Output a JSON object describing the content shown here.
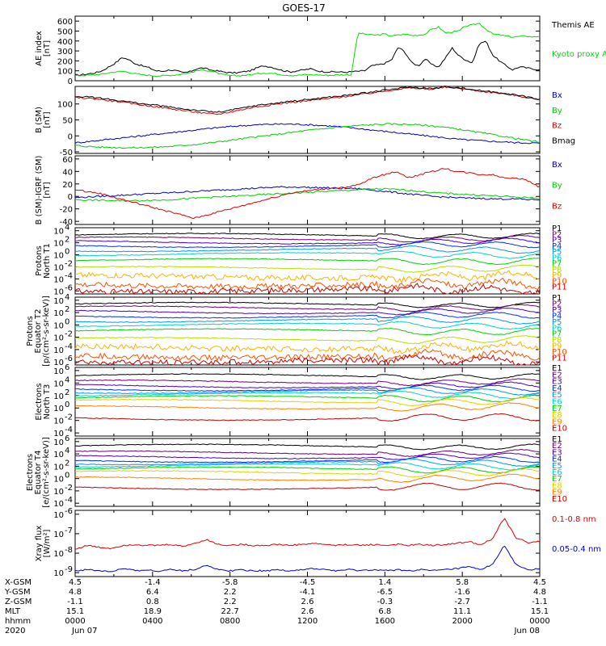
{
  "title": "GOES-17",
  "chart_data": [
    {
      "type": "line",
      "ylabel": [
        "AE index",
        "[nT]"
      ],
      "yticks": [
        "600",
        "500",
        "400",
        "300",
        "200",
        "100",
        "0"
      ],
      "ylim": [
        0,
        650
      ],
      "series": [
        {
          "name": "Themis AE",
          "color": "#000000",
          "values": [
            55,
            60,
            70,
            80,
            100,
            140,
            180,
            235,
            210,
            170,
            150,
            130,
            100,
            95,
            110,
            100,
            80,
            90,
            120,
            130,
            110,
            100,
            90,
            80,
            80,
            90,
            100,
            130,
            150,
            140,
            120,
            100,
            90,
            100,
            110,
            120,
            100,
            90,
            90,
            90,
            85,
            90,
            95,
            100,
            150,
            160,
            175,
            210,
            340,
            285,
            180,
            150,
            220,
            160,
            140,
            230,
            330,
            250,
            210,
            180,
            370,
            400,
            260,
            200,
            150,
            110,
            140,
            130,
            120,
            110
          ]
        },
        {
          "name": "Kyoto proxy AE",
          "color": "#00dd00",
          "values": [
            50,
            55,
            55,
            60,
            65,
            80,
            90,
            95,
            85,
            70,
            60,
            55,
            50,
            50,
            55,
            60,
            70,
            80,
            100,
            110,
            100,
            80,
            60,
            50,
            50,
            55,
            60,
            70,
            80,
            75,
            70,
            60,
            55,
            55,
            60,
            60,
            60,
            55,
            55,
            60,
            60,
            60,
            480,
            470,
            460,
            460,
            470,
            450,
            460,
            470,
            455,
            460,
            470,
            520,
            540,
            480,
            490,
            500,
            550,
            560,
            580,
            520,
            470,
            460,
            450,
            440,
            445,
            450,
            440,
            450
          ]
        }
      ]
    },
    {
      "type": "line",
      "ylabel": [
        "B (SM)",
        "[nT]"
      ],
      "yticks": [
        "100",
        "50",
        "0",
        "-50"
      ],
      "ylim": [
        -55,
        155
      ],
      "series": [
        {
          "name": "Bx",
          "color": "#0000cc",
          "values": [
            -22,
            -18,
            -14,
            -10,
            -6,
            -2,
            2,
            6,
            10,
            14,
            18,
            22,
            26,
            29,
            32,
            34,
            36,
            37,
            37,
            36,
            34,
            32,
            29,
            26,
            22,
            18,
            14,
            10,
            6,
            2,
            -2,
            -6,
            -10,
            -13,
            -15,
            -17,
            -19,
            -21,
            -22,
            -23
          ]
        },
        {
          "name": "By",
          "color": "#00cc00",
          "values": [
            -30,
            -33,
            -35,
            -36,
            -37,
            -37,
            -36,
            -35,
            -33,
            -30,
            -27,
            -23,
            -19,
            -14,
            -9,
            -4,
            0,
            5,
            10,
            15,
            19,
            23,
            27,
            30,
            33,
            35,
            37,
            37,
            36,
            34,
            31,
            27,
            22,
            16,
            10,
            4,
            -2,
            -8,
            -14,
            -20
          ]
        },
        {
          "name": "Bz",
          "color": "#dd0000",
          "values": [
            120,
            118,
            115,
            110,
            105,
            100,
            95,
            90,
            85,
            80,
            75,
            70,
            68,
            75,
            82,
            90,
            95,
            100,
            105,
            108,
            112,
            116,
            120,
            125,
            130,
            135,
            140,
            146,
            150,
            148,
            146,
            152,
            150,
            145,
            140,
            136,
            132,
            126,
            120,
            112
          ]
        },
        {
          "name": "Bmag",
          "color": "#000000",
          "values": [
            124,
            122,
            119,
            114,
            109,
            104,
            99,
            95,
            90,
            85,
            81,
            77,
            74,
            80,
            87,
            94,
            99,
            103,
            108,
            112,
            116,
            120,
            124,
            128,
            133,
            138,
            143,
            148,
            153,
            150,
            148,
            154,
            152,
            147,
            142,
            138,
            134,
            128,
            122,
            114
          ]
        }
      ]
    },
    {
      "type": "line",
      "ylabel": [
        "B (SM)-IGRF (SM)",
        "[nT]"
      ],
      "yticks": [
        "60",
        "40",
        "20",
        "0",
        "-20",
        "-40"
      ],
      "ylim": [
        -45,
        65
      ],
      "series": [
        {
          "name": "Bx",
          "color": "#0000cc",
          "values": [
            -2,
            -1,
            0,
            1,
            2,
            3,
            4,
            5,
            6,
            7,
            8,
            9,
            10,
            11,
            12,
            13,
            14,
            15,
            15,
            15,
            14,
            14,
            13,
            13,
            12,
            10,
            8,
            6,
            4,
            2,
            0,
            -1,
            -2,
            -3,
            -3,
            -4,
            -4,
            -4,
            -5,
            -5
          ]
        },
        {
          "name": "By",
          "color": "#00cc00",
          "values": [
            -5,
            -6,
            -6,
            -7,
            -7,
            -7,
            -6,
            -6,
            -5,
            -4,
            -3,
            -2,
            -1,
            0,
            1,
            2,
            3,
            4,
            5,
            6,
            7,
            8,
            9,
            10,
            11,
            12,
            12,
            11,
            10,
            8,
            6,
            5,
            4,
            3,
            2,
            1,
            0,
            -1,
            -2,
            -3
          ]
        },
        {
          "name": "Bz",
          "color": "#dd0000",
          "values": [
            10,
            8,
            5,
            0,
            -5,
            -10,
            -15,
            -20,
            -25,
            -30,
            -35,
            -30,
            -25,
            -20,
            -15,
            -10,
            -5,
            0,
            5,
            8,
            10,
            12,
            14,
            15,
            20,
            30,
            35,
            40,
            30,
            35,
            40,
            45,
            40,
            38,
            35,
            35,
            30,
            30,
            25,
            15
          ]
        }
      ]
    },
    {
      "type": "line",
      "ylabel": [
        "Protons",
        "North T1"
      ],
      "ylog": true,
      "yticks_exp": [
        "4",
        "2",
        "0",
        "-2",
        "-4",
        "-6"
      ],
      "ylim_exp": [
        -6.5,
        4.5
      ],
      "series": [
        {
          "name": "P1",
          "color": "#000000",
          "base": 3.3
        },
        {
          "name": "P2",
          "color": "#6a0072",
          "base": 2.7
        },
        {
          "name": "P3",
          "color": "#4a00c8",
          "base": 2.1
        },
        {
          "name": "P4",
          "color": "#0030ff",
          "base": 1.5
        },
        {
          "name": "P5",
          "color": "#0096ff",
          "base": 0.8
        },
        {
          "name": "P6",
          "color": "#00d0d0",
          "base": 0.1
        },
        {
          "name": "P7",
          "color": "#00d000",
          "base": -0.9
        },
        {
          "name": "P8",
          "color": "#b0e000",
          "base": -2.2
        },
        {
          "name": "P9",
          "color": "#ffb000",
          "base": -3.6
        },
        {
          "name": "P10",
          "color": "#ff5000",
          "base": -5.0
        },
        {
          "name": "P11",
          "color": "#d00000",
          "base": -5.9
        }
      ]
    },
    {
      "type": "line",
      "ylabel": [
        "Protons",
        "Equator T2",
        "[p/(cm²-s-sr-keV)]"
      ],
      "ylog": true,
      "yticks_exp": [
        "4",
        "2",
        "0",
        "-2",
        "-4",
        "-6"
      ],
      "ylim_exp": [
        -6.5,
        4.5
      ],
      "series": [
        {
          "name": "P1",
          "color": "#000000",
          "base": 3.4
        },
        {
          "name": "P2",
          "color": "#6a0072",
          "base": 2.8
        },
        {
          "name": "P3",
          "color": "#4a00c8",
          "base": 2.1
        },
        {
          "name": "P4",
          "color": "#0030ff",
          "base": 1.4
        },
        {
          "name": "P5",
          "color": "#0096ff",
          "base": 0.7
        },
        {
          "name": "P6",
          "color": "#00d0d0",
          "base": 0.0
        },
        {
          "name": "P7",
          "color": "#00d000",
          "base": -0.9
        },
        {
          "name": "P8",
          "color": "#b0e000",
          "base": -2.3
        },
        {
          "name": "P9",
          "color": "#ffb000",
          "base": -3.7
        },
        {
          "name": "P10",
          "color": "#ff5000",
          "base": -5.1
        },
        {
          "name": "P11",
          "color": "#d00000",
          "base": -5.9
        }
      ]
    },
    {
      "type": "line",
      "ylabel": [
        "Electrons",
        "North T3"
      ],
      "ylog": true,
      "yticks_exp": [
        "6",
        "4",
        "2",
        "0",
        "-2",
        "-4"
      ],
      "ylim_exp": [
        -4.5,
        6.5
      ],
      "series": [
        {
          "name": "E1",
          "color": "#000000",
          "base": 5.2
        },
        {
          "name": "E2",
          "color": "#6a0072",
          "base": 4.2
        },
        {
          "name": "E3",
          "color": "#4a00c8",
          "base": 3.5
        },
        {
          "name": "E4",
          "color": "#0030ff",
          "base": 3.0
        },
        {
          "name": "E5",
          "color": "#0096ff",
          "base": 2.6
        },
        {
          "name": "E6",
          "color": "#00d0d0",
          "base": 2.2
        },
        {
          "name": "E7",
          "color": "#00d000",
          "base": 1.7
        },
        {
          "name": "E8",
          "color": "#e0d000",
          "base": 1.1
        },
        {
          "name": "E9",
          "color": "#ff8000",
          "base": 0.1
        },
        {
          "name": "E10",
          "color": "#c00000",
          "base": -1.7
        }
      ]
    },
    {
      "type": "line",
      "ylabel": [
        "Electrons",
        "Equator T4",
        "[e/(cm²-s-sr-keV)]"
      ],
      "ylog": true,
      "yticks_exp": [
        "6",
        "4",
        "2",
        "0",
        "-2",
        "-4"
      ],
      "ylim_exp": [
        -4.5,
        6.5
      ],
      "series": [
        {
          "name": "E1",
          "color": "#000000",
          "base": 5.3
        },
        {
          "name": "E2",
          "color": "#6a0072",
          "base": 4.2
        },
        {
          "name": "E3",
          "color": "#4a00c8",
          "base": 3.5
        },
        {
          "name": "E4",
          "color": "#0030ff",
          "base": 2.9
        },
        {
          "name": "E5",
          "color": "#0096ff",
          "base": 2.5
        },
        {
          "name": "E6",
          "color": "#00d0d0",
          "base": 2.1
        },
        {
          "name": "E7",
          "color": "#00d000",
          "base": 1.6
        },
        {
          "name": "E8",
          "color": "#e0d000",
          "base": 1.0
        },
        {
          "name": "E9",
          "color": "#ff8000",
          "base": 0.0
        },
        {
          "name": "E10",
          "color": "#c00000",
          "base": -1.5
        }
      ]
    },
    {
      "type": "line",
      "ylabel": [
        "Xray flux",
        "[W/m²]"
      ],
      "ylog": true,
      "yticks_exp": [
        "-6",
        "-7",
        "-8",
        "-9"
      ],
      "ylim_exp": [
        -9.2,
        -5.8
      ],
      "series": [
        {
          "name": "0.1-0.8 nm",
          "color": "#dd0000",
          "values": [
            -7.8,
            -7.6,
            -7.7,
            -7.75,
            -7.6,
            -7.55,
            -7.6,
            -7.6,
            -7.55,
            -7.65,
            -7.5,
            -7.3,
            -7.55,
            -7.6,
            -7.55,
            -7.6,
            -7.6,
            -7.55,
            -7.6,
            -7.55,
            -7.5,
            -7.55,
            -7.6,
            -7.55,
            -7.6,
            -7.55,
            -7.6,
            -7.55,
            -7.6,
            -7.55,
            -7.6,
            -7.55,
            -7.5,
            -7.4,
            -7.55,
            -7.3,
            -6.2,
            -7.2,
            -7.45,
            -7.4
          ]
        },
        {
          "name": "0.05-0.4 nm",
          "color": "#0000cc",
          "values": [
            -8.9,
            -8.85,
            -8.9,
            -8.95,
            -8.8,
            -8.9,
            -8.85,
            -8.95,
            -8.8,
            -8.9,
            -8.85,
            -8.6,
            -8.85,
            -8.9,
            -8.85,
            -8.9,
            -8.9,
            -8.85,
            -8.9,
            -8.85,
            -8.8,
            -8.85,
            -8.9,
            -8.85,
            -8.9,
            -8.85,
            -8.9,
            -8.85,
            -8.9,
            -8.85,
            -8.9,
            -8.85,
            -8.8,
            -8.7,
            -8.85,
            -8.6,
            -7.6,
            -8.6,
            -8.85,
            -8.8
          ]
        }
      ]
    }
  ],
  "xaxis": {
    "row_labels": [
      "X-GSM",
      "Y-GSM",
      "Z-GSM",
      "MLT",
      "hhmm",
      "2020"
    ],
    "columns": [
      [
        "4.5",
        "4.8",
        "-1.1",
        "15.1",
        "0000",
        "Jun 07"
      ],
      [
        "-1.4",
        "6.4",
        "0.8",
        "18.9",
        "0400",
        ""
      ],
      [
        "-5.8",
        "2.2",
        "2.2",
        "22.7",
        "0800",
        ""
      ],
      [
        "-4.5",
        "-4.1",
        "2.6",
        "2.6",
        "1200",
        ""
      ],
      [
        "1.4",
        "-6.5",
        "-0.3",
        "6.8",
        "1600",
        ""
      ],
      [
        "5.8",
        "-1.6",
        "-2.7",
        "11.1",
        "2000",
        ""
      ],
      [
        "4.5",
        "4.8",
        "-1.1",
        "15.1",
        "0000",
        "Jun 08"
      ]
    ]
  }
}
